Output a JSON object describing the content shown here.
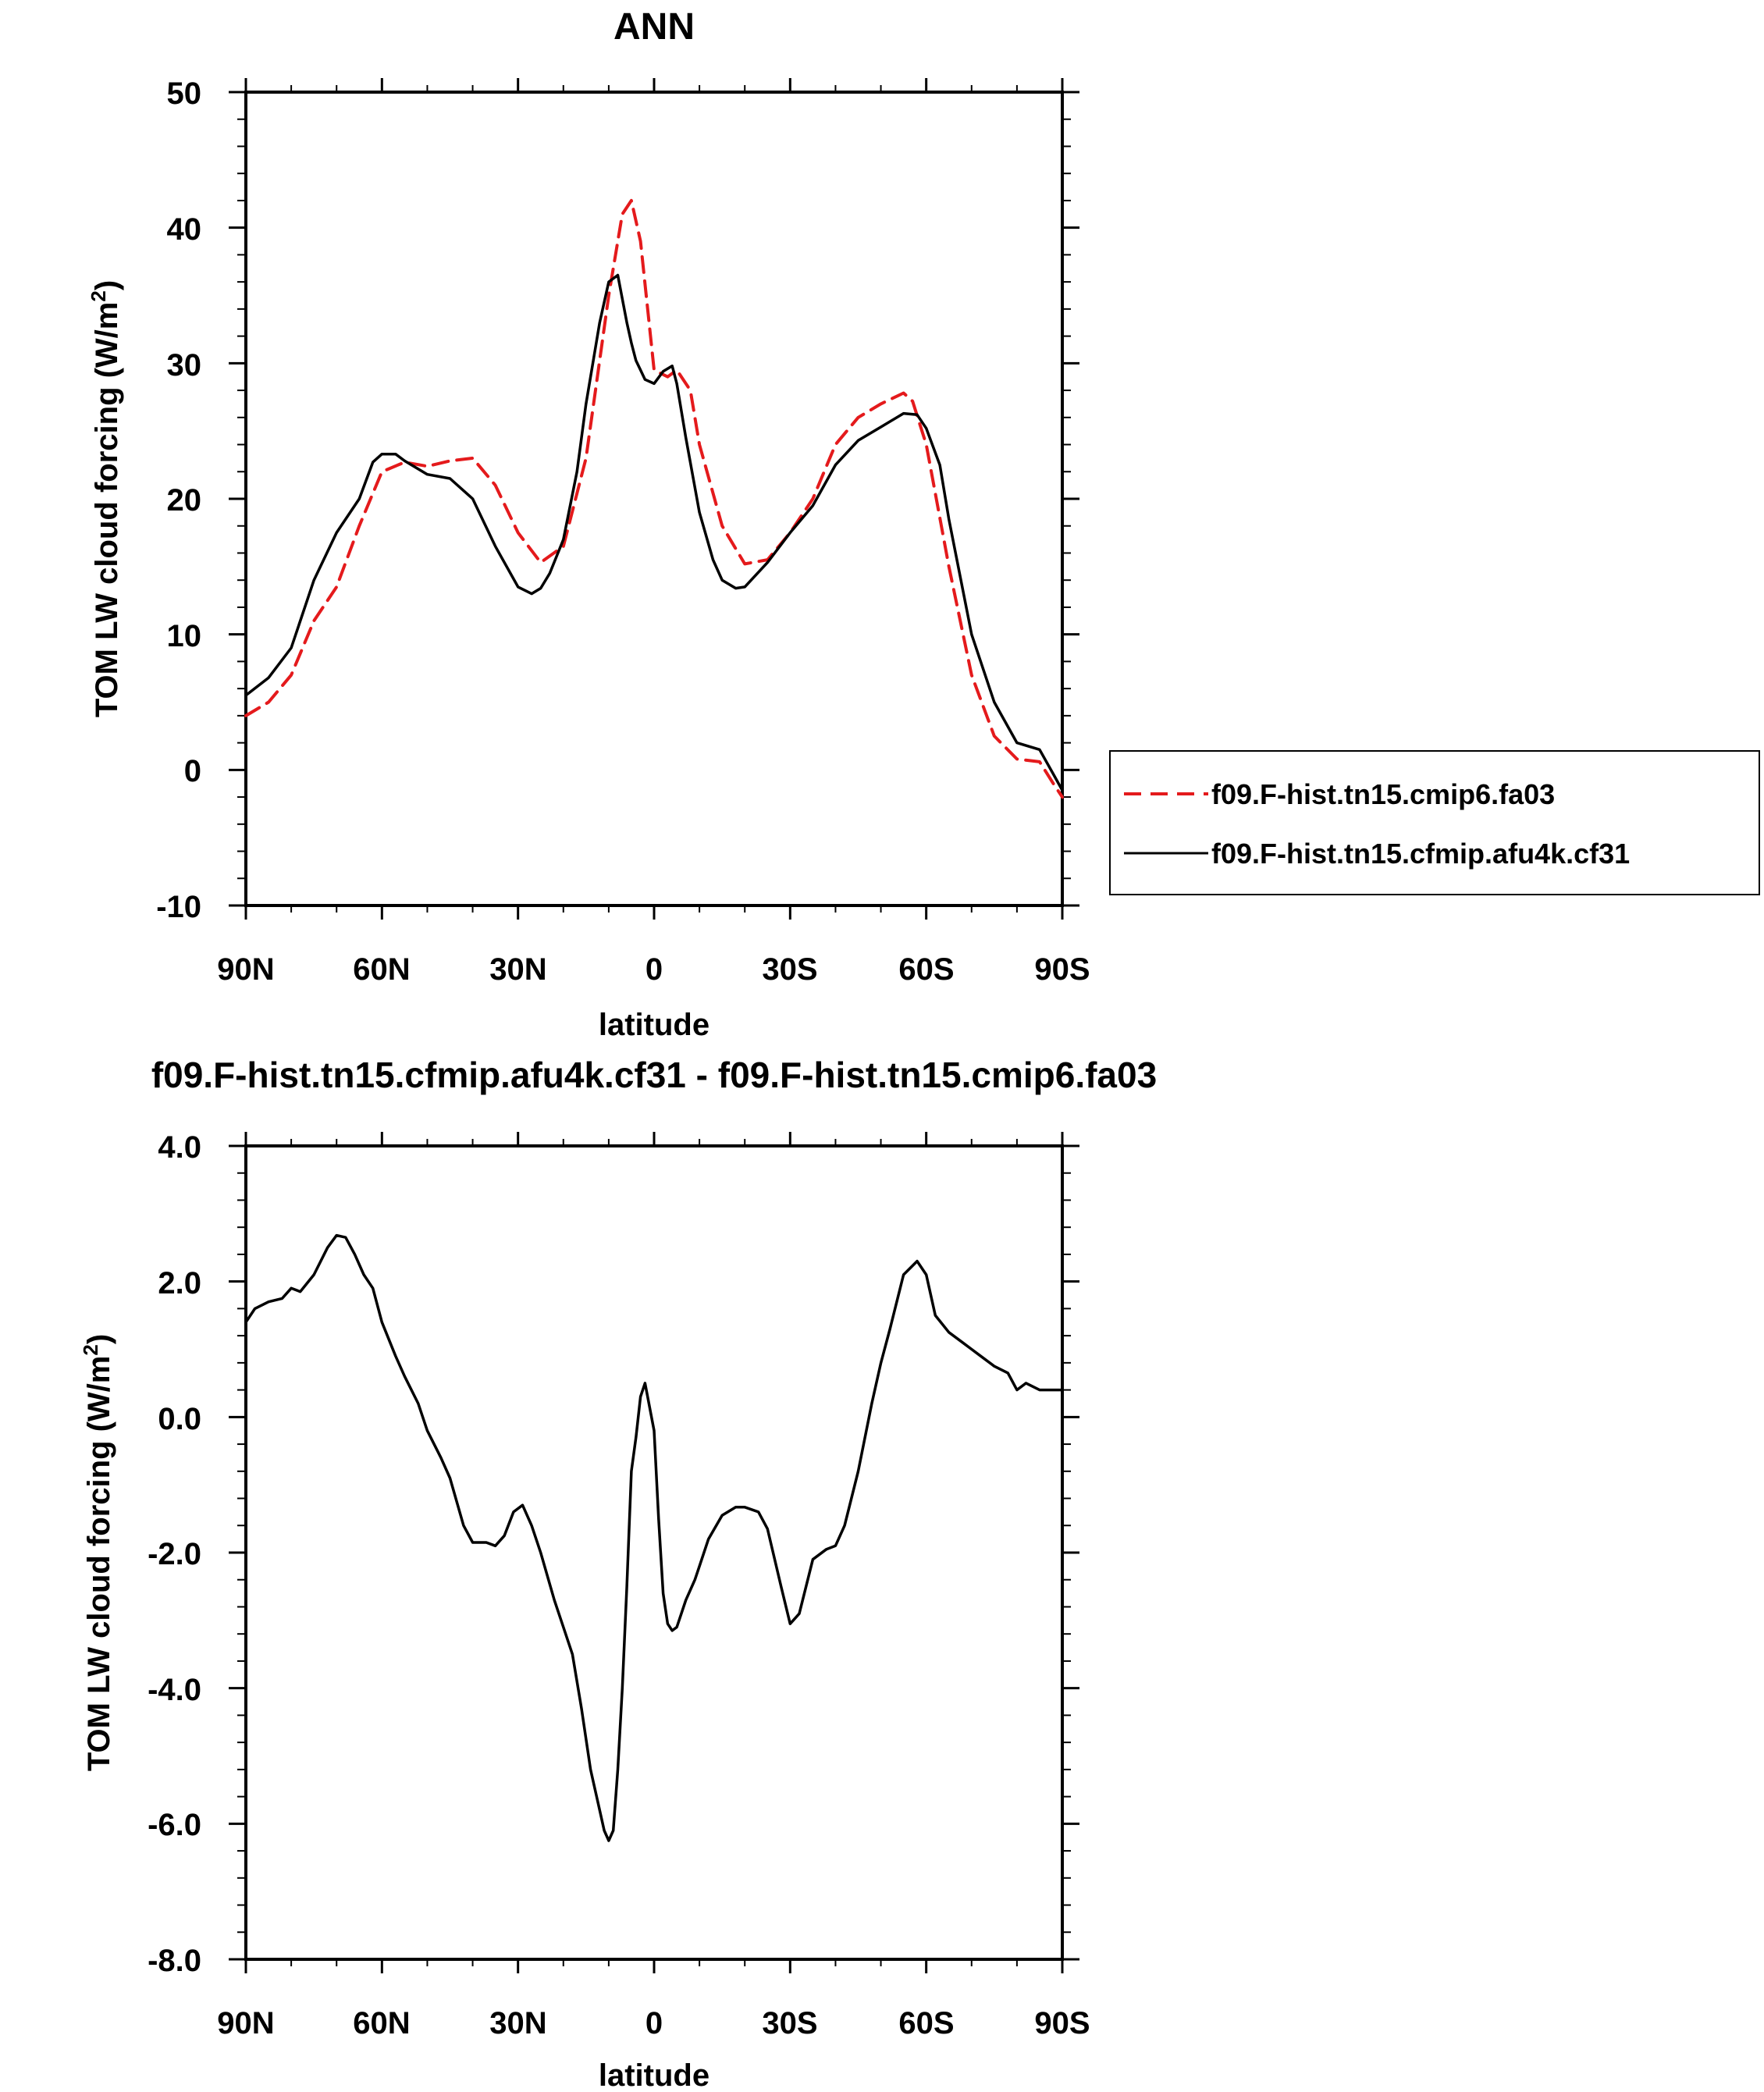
{
  "chart_data": [
    {
      "type": "line",
      "title": "ANN",
      "xlabel": "latitude",
      "ylabel": "TOM LW cloud forcing (W/m",
      "ylabel_sup": "2",
      "ylabel_end": ")",
      "xlim": [
        90,
        -90
      ],
      "ylim": [
        -10,
        50
      ],
      "xticks": [
        90,
        60,
        30,
        0,
        -30,
        -60,
        -90
      ],
      "xtick_labels": [
        "90N",
        "60N",
        "30N",
        "0",
        "30S",
        "60S",
        "90S"
      ],
      "yticks": [
        -10,
        0,
        10,
        20,
        30,
        40,
        50
      ],
      "ytick_labels": [
        "-10",
        "0",
        "10",
        "20",
        "30",
        "40",
        "50"
      ],
      "legend_position": "right",
      "series": [
        {
          "name": "f09.F-hist.tn15.cmip6.fa03",
          "color": "#e41a1c",
          "dash": "dashed",
          "x": [
            90,
            85,
            80,
            75,
            70,
            65,
            60,
            55,
            50,
            45,
            40,
            35,
            30,
            25,
            20,
            15,
            10,
            7,
            5,
            3,
            0,
            -3,
            -5,
            -8,
            -10,
            -15,
            -20,
            -25,
            -30,
            -35,
            -40,
            -45,
            -50,
            -55,
            -57,
            -60,
            -65,
            -70,
            -75,
            -80,
            -85,
            -88,
            -90
          ],
          "y": [
            4,
            5,
            7,
            11,
            13.5,
            18,
            22,
            22.7,
            22.4,
            22.8,
            23,
            21,
            17.5,
            15.3,
            16.5,
            23,
            35,
            41,
            42,
            39,
            29.5,
            29,
            29.5,
            28,
            24,
            18,
            15.2,
            15.5,
            17.5,
            20,
            24,
            26,
            27,
            27.8,
            27.2,
            24,
            15,
            7,
            2.5,
            0.8,
            0.6,
            -1,
            -2
          ]
        },
        {
          "name": "f09.F-hist.tn15.cfmip.afu4k.cf31",
          "color": "#000000",
          "dash": "solid",
          "x": [
            90,
            85,
            80,
            75,
            70,
            65,
            62,
            60,
            57,
            55,
            50,
            45,
            40,
            35,
            30,
            27,
            25,
            23,
            20,
            17,
            15,
            12,
            10,
            8,
            6,
            5,
            4,
            3,
            2,
            0,
            -2,
            -4,
            -5,
            -7,
            -10,
            -13,
            -15,
            -18,
            -20,
            -25,
            -30,
            -35,
            -40,
            -45,
            -50,
            -55,
            -58,
            -60,
            -63,
            -65,
            -70,
            -75,
            -80,
            -85,
            -88,
            -90
          ],
          "y": [
            5.5,
            6.8,
            9,
            14,
            17.5,
            20,
            22.7,
            23.3,
            23.3,
            22.8,
            21.8,
            21.5,
            20,
            16.5,
            13.5,
            13,
            13.4,
            14.5,
            17,
            22,
            27,
            33,
            36,
            36.5,
            33,
            31.5,
            30.2,
            29.5,
            28.8,
            28.5,
            29.4,
            29.8,
            28.5,
            24.5,
            19,
            15.5,
            14,
            13.4,
            13.5,
            15.3,
            17.5,
            19.5,
            22.5,
            24.3,
            25.3,
            26.3,
            26.2,
            25.2,
            22.5,
            18.5,
            10,
            5,
            2,
            1.5,
            -0.3,
            -1.5
          ]
        }
      ]
    },
    {
      "type": "line",
      "title": "f09.F-hist.tn15.cfmip.afu4k.cf31 - f09.F-hist.tn15.cmip6.fa03",
      "xlabel": "latitude",
      "ylabel": "TOM LW cloud forcing (W/m",
      "ylabel_sup": "2",
      "ylabel_end": ")",
      "xlim": [
        90,
        -90
      ],
      "ylim": [
        -8,
        4
      ],
      "xticks": [
        90,
        60,
        30,
        0,
        -30,
        -60,
        -90
      ],
      "xtick_labels": [
        "90N",
        "60N",
        "30N",
        "0",
        "30S",
        "60S",
        "90S"
      ],
      "yticks": [
        -8,
        -6,
        -4,
        -2,
        0,
        2,
        4
      ],
      "ytick_labels": [
        "-8.0",
        "-6.0",
        "-4.0",
        "-2.0",
        "0.0",
        "2.0",
        "4.0"
      ],
      "series": [
        {
          "color": "#000000",
          "dash": "solid",
          "x": [
            90,
            88,
            85,
            82,
            80,
            78,
            75,
            72,
            70,
            68,
            66,
            64,
            62,
            60,
            57,
            55,
            52,
            50,
            47,
            45,
            42,
            40,
            37,
            35,
            33,
            31,
            29,
            27,
            25,
            22,
            20,
            18,
            16,
            14,
            12,
            11,
            10,
            9,
            8,
            7,
            6,
            5,
            4,
            3,
            2,
            0,
            -1,
            -2,
            -3,
            -4,
            -5,
            -6,
            -7,
            -8,
            -9,
            -10,
            -12,
            -15,
            -18,
            -20,
            -23,
            -25,
            -28,
            -30,
            -32,
            -35,
            -38,
            -40,
            -42,
            -45,
            -48,
            -50,
            -52,
            -55,
            -58,
            -60,
            -62,
            -65,
            -68,
            -70,
            -72,
            -75,
            -78,
            -80,
            -82,
            -85,
            -88,
            -90
          ],
          "y": [
            1.4,
            1.6,
            1.7,
            1.75,
            1.9,
            1.85,
            2.1,
            2.5,
            2.68,
            2.65,
            2.4,
            2.1,
            1.9,
            1.4,
            0.9,
            0.6,
            0.2,
            -0.2,
            -0.6,
            -0.9,
            -1.6,
            -1.85,
            -1.85,
            -1.9,
            -1.75,
            -1.4,
            -1.3,
            -1.6,
            -2,
            -2.7,
            -3.1,
            -3.5,
            -4.3,
            -5.2,
            -5.8,
            -6.1,
            -6.25,
            -6.1,
            -5.2,
            -4,
            -2.5,
            -0.8,
            -0.3,
            0.3,
            0.5,
            -0.2,
            -1.5,
            -2.6,
            -3.05,
            -3.15,
            -3.1,
            -2.9,
            -2.7,
            -2.55,
            -2.4,
            -2.2,
            -1.8,
            -1.45,
            -1.33,
            -1.33,
            -1.4,
            -1.65,
            -2.5,
            -3.05,
            -2.9,
            -2.1,
            -1.95,
            -1.9,
            -1.6,
            -0.8,
            0.2,
            0.8,
            1.3,
            2.1,
            2.3,
            2.1,
            1.5,
            1.25,
            1.1,
            1,
            0.9,
            0.75,
            0.65,
            0.4,
            0.5,
            0.4,
            0.4,
            0.4
          ]
        }
      ]
    }
  ]
}
